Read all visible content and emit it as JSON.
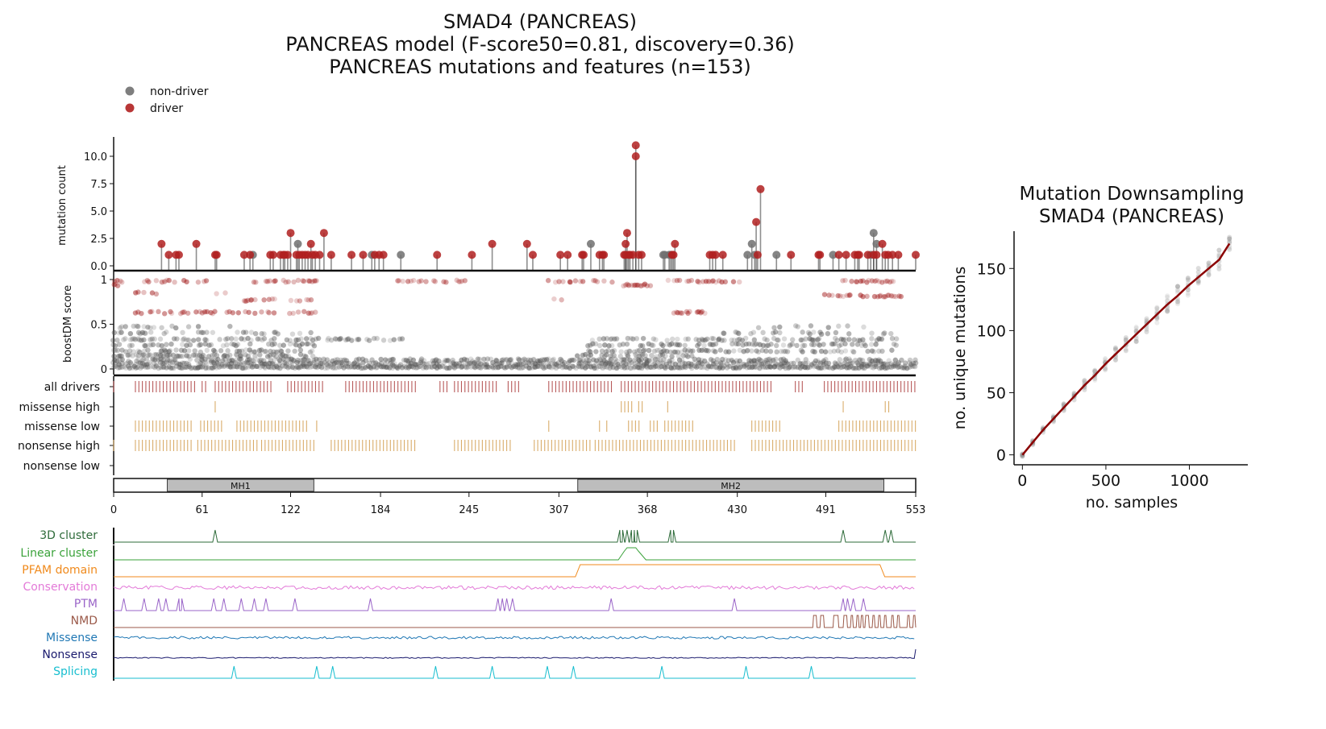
{
  "header": {
    "title": "SMAD4 (PANCREAS)",
    "model_line": "PANCREAS model (F-score50=0.81, discovery=0.36)",
    "mutations_line": "PANCREAS mutations and features (n=153)"
  },
  "legend": {
    "non_driver": "non-driver",
    "driver": "driver"
  },
  "colors": {
    "driver": "#b02020",
    "non_driver": "#707070",
    "all_drivers_track": "#b85a5a",
    "consequence_track": "#d9ac6a",
    "domain_fill": "#bdbdbd",
    "trend_line": "#8b0000"
  },
  "chart_data": [
    {
      "type": "scatter",
      "panel": "lollipop",
      "ylabel": "mutation count",
      "xlim": [
        0,
        553
      ],
      "ylim": [
        0,
        11.5
      ],
      "yticks": [
        "0.0",
        "2.5",
        "5.0",
        "7.5",
        "10.0"
      ],
      "drivers": [
        [
          33,
          2
        ],
        [
          38,
          1
        ],
        [
          43,
          1
        ],
        [
          45,
          1
        ],
        [
          57,
          2
        ],
        [
          70,
          1
        ],
        [
          71,
          1
        ],
        [
          90,
          1
        ],
        [
          94,
          1
        ],
        [
          108,
          1
        ],
        [
          110,
          1
        ],
        [
          115,
          1
        ],
        [
          117,
          1
        ],
        [
          118,
          1
        ],
        [
          120,
          1
        ],
        [
          122,
          3
        ],
        [
          126,
          1
        ],
        [
          128,
          1
        ],
        [
          130,
          1
        ],
        [
          132,
          1
        ],
        [
          134,
          1
        ],
        [
          136,
          2
        ],
        [
          137,
          1
        ],
        [
          139,
          1
        ],
        [
          142,
          1
        ],
        [
          145,
          3
        ],
        [
          150,
          1
        ],
        [
          164,
          1
        ],
        [
          172,
          1
        ],
        [
          180,
          1
        ],
        [
          183,
          1
        ],
        [
          186,
          1
        ],
        [
          223,
          1
        ],
        [
          247,
          1
        ],
        [
          261,
          2
        ],
        [
          285,
          2
        ],
        [
          289,
          1
        ],
        [
          308,
          1
        ],
        [
          313,
          1
        ],
        [
          323,
          1
        ],
        [
          324,
          1
        ],
        [
          335,
          1
        ],
        [
          337,
          1
        ],
        [
          338,
          1
        ],
        [
          352,
          1
        ],
        [
          353,
          1
        ],
        [
          353,
          2
        ],
        [
          354,
          3
        ],
        [
          355,
          1
        ],
        [
          356,
          1
        ],
        [
          358,
          1
        ],
        [
          360,
          11
        ],
        [
          360,
          10
        ],
        [
          362,
          1
        ],
        [
          364,
          1
        ],
        [
          385,
          1
        ],
        [
          386,
          1
        ],
        [
          387,
          2
        ],
        [
          411,
          1
        ],
        [
          413,
          1
        ],
        [
          415,
          1
        ],
        [
          420,
          1
        ],
        [
          443,
          4
        ],
        [
          444,
          1
        ],
        [
          446,
          7
        ],
        [
          467,
          1
        ],
        [
          486,
          1
        ],
        [
          487,
          1
        ],
        [
          500,
          1
        ],
        [
          505,
          1
        ],
        [
          511,
          1
        ],
        [
          513,
          1
        ],
        [
          514,
          1
        ],
        [
          520,
          1
        ],
        [
          524,
          1
        ],
        [
          526,
          1
        ],
        [
          530,
          2
        ],
        [
          532,
          1
        ],
        [
          534,
          1
        ],
        [
          537,
          1
        ],
        [
          541,
          1
        ],
        [
          553,
          1
        ]
      ],
      "non_drivers": [
        [
          96,
          1
        ],
        [
          127,
          2
        ],
        [
          178,
          1
        ],
        [
          198,
          1
        ],
        [
          329,
          2
        ],
        [
          379,
          1
        ],
        [
          380,
          1
        ],
        [
          383,
          1
        ],
        [
          384,
          1
        ],
        [
          437,
          1
        ],
        [
          440,
          2
        ],
        [
          442,
          1
        ],
        [
          457,
          1
        ],
        [
          496,
          1
        ],
        [
          522,
          1
        ],
        [
          524,
          3
        ],
        [
          526,
          2
        ]
      ]
    },
    {
      "type": "scatter",
      "panel": "boostdm",
      "ylabel": "boostDM score",
      "xlim": [
        0,
        553
      ],
      "ylim": [
        0,
        1
      ],
      "yticks": [
        "0",
        "0.5",
        "1"
      ],
      "driver_bands": [
        {
          "y": 0.98,
          "ranges": [
            [
              0,
              7
            ],
            [
              20,
              65
            ],
            [
              95,
              140
            ],
            [
              190,
              250
            ],
            [
              300,
              345
            ],
            [
              380,
              435
            ],
            [
              500,
              540
            ]
          ],
          "density": 0.5
        },
        {
          "y": 0.94,
          "ranges": [
            [
              0,
              3
            ],
            [
              350,
              370
            ]
          ],
          "density": 0.9
        },
        {
          "y": 0.85,
          "ranges": [
            [
              10,
              30
            ],
            [
              60,
              80
            ]
          ],
          "density": 0.2
        },
        {
          "y": 0.82,
          "ranges": [
            [
              490,
              545
            ]
          ],
          "density": 0.6
        },
        {
          "y": 0.77,
          "ranges": [
            [
              90,
              140
            ],
            [
              300,
              310
            ]
          ],
          "density": 0.5
        },
        {
          "y": 0.63,
          "ranges": [
            [
              15,
              140
            ],
            [
              385,
              410
            ]
          ],
          "density": 0.5
        }
      ],
      "nondriver_bands": [
        {
          "y": 0.02,
          "ranges": [
            [
              0,
              553
            ]
          ],
          "density": 1.0
        },
        {
          "y": 0.06,
          "ranges": [
            [
              0,
              553
            ]
          ],
          "density": 0.8
        },
        {
          "y": 0.1,
          "ranges": [
            [
              0,
              553
            ]
          ],
          "density": 0.6
        },
        {
          "y": 0.15,
          "ranges": [
            [
              0,
              140
            ],
            [
              320,
              400
            ]
          ],
          "density": 0.6
        },
        {
          "y": 0.2,
          "ranges": [
            [
              0,
              140
            ],
            [
              320,
              540
            ]
          ],
          "density": 0.5
        },
        {
          "y": 0.27,
          "ranges": [
            [
              0,
              140
            ],
            [
              320,
              540
            ]
          ],
          "density": 0.5
        },
        {
          "y": 0.33,
          "ranges": [
            [
              0,
              200
            ],
            [
              320,
              540
            ]
          ],
          "density": 0.45
        },
        {
          "y": 0.4,
          "ranges": [
            [
              0,
              140
            ],
            [
              420,
              540
            ]
          ],
          "density": 0.3
        },
        {
          "y": 0.47,
          "ranges": [
            [
              0,
              80
            ],
            [
              440,
              520
            ]
          ],
          "density": 0.2
        }
      ]
    },
    {
      "type": "table",
      "panel": "consequence-tracks",
      "xlim": [
        0,
        553
      ],
      "rows": [
        {
          "label": "all drivers",
          "ranges": [
            [
              0,
              1
            ],
            [
              15,
              58
            ],
            [
              61,
              65
            ],
            [
              70,
              110
            ],
            [
              120,
              145
            ],
            [
              160,
              210
            ],
            [
              225,
              230
            ],
            [
              235,
              265
            ],
            [
              272,
              280
            ],
            [
              300,
              345
            ],
            [
              350,
              455
            ],
            [
              470,
              475
            ],
            [
              490,
              553
            ]
          ],
          "step": 2.4
        },
        {
          "label": "missense high",
          "ranges": [
            [
              70,
              71
            ],
            [
              350,
              358
            ],
            [
              362,
              366
            ],
            [
              382,
              384
            ],
            [
              503,
              504
            ],
            [
              532,
              536
            ]
          ],
          "step": 2.4
        },
        {
          "label": "missense low",
          "ranges": [
            [
              15,
              55
            ],
            [
              60,
              75
            ],
            [
              85,
              135
            ],
            [
              140,
              142
            ],
            [
              300,
              302
            ],
            [
              335,
              336
            ],
            [
              340,
              342
            ],
            [
              355,
              364
            ],
            [
              370,
              376
            ],
            [
              380,
              400
            ],
            [
              440,
              460
            ],
            [
              500,
              553
            ]
          ],
          "step": 2.4
        },
        {
          "label": "nonsense high",
          "ranges": [
            [
              0,
              1
            ],
            [
              15,
              55
            ],
            [
              58,
              100
            ],
            [
              102,
              140
            ],
            [
              150,
              210
            ],
            [
              235,
              275
            ],
            [
              290,
              330
            ],
            [
              332,
              430
            ],
            [
              440,
              553
            ]
          ],
          "step": 2.4
        },
        {
          "label": "nonsense low",
          "ranges": [],
          "step": 2.4
        }
      ]
    },
    {
      "type": "bar",
      "panel": "domains",
      "xlim": [
        0,
        553
      ],
      "xticks": [
        "0",
        "61",
        "122",
        "184",
        "245",
        "307",
        "368",
        "430",
        "491",
        "553"
      ],
      "domains": [
        {
          "label": "MH1",
          "start": 37,
          "end": 138
        },
        {
          "label": "MH2",
          "start": 320,
          "end": 531
        }
      ]
    },
    {
      "type": "line",
      "panel": "features",
      "xlim": [
        0,
        553
      ],
      "tracks": [
        {
          "label": "3D cluster",
          "color": "#2e6b3a",
          "kind": "spikes",
          "spikes": [
            70,
            349,
            351,
            354,
            357,
            359,
            361,
            384,
            386,
            503,
            532,
            536
          ]
        },
        {
          "label": "Linear cluster",
          "color": "#3aa23a",
          "kind": "plateau",
          "segments": [
            [
              348,
              367,
              0.7
            ],
            [
              352,
              362,
              1.0
            ]
          ]
        },
        {
          "label": "PFAM domain",
          "color": "#f08a1c",
          "kind": "step",
          "segments": [
            [
              320,
              530,
              1.0
            ]
          ]
        },
        {
          "label": "Conservation",
          "color": "#e37ad8",
          "kind": "noise",
          "level": 0.5,
          "amp": 0.5
        },
        {
          "label": "PTM",
          "color": "#9a64c8",
          "kind": "spikes",
          "spikes": [
            7,
            21,
            31,
            36,
            45,
            47,
            69,
            76,
            88,
            97,
            105,
            125,
            177,
            265,
            268,
            271,
            275,
            343,
            428,
            503,
            506,
            510,
            517
          ]
        },
        {
          "label": "NMD",
          "color": "#9b5a4a",
          "kind": "blocks",
          "segments": [
            [
              482,
              485
            ],
            [
              487,
              490
            ],
            [
              496,
              500
            ],
            [
              503,
              506
            ],
            [
              508,
              510
            ],
            [
              512,
              514
            ],
            [
              515,
              517
            ],
            [
              518,
              521
            ],
            [
              523,
              525
            ],
            [
              527,
              529
            ],
            [
              531,
              533
            ],
            [
              536,
              538
            ],
            [
              540,
              542
            ],
            [
              547,
              549
            ],
            [
              551,
              553
            ]
          ]
        },
        {
          "label": "Missense",
          "color": "#1f77b4",
          "kind": "noise",
          "level": 0.6,
          "amp": 0.35
        },
        {
          "label": "Nonsense",
          "color": "#1a1a6e",
          "kind": "noise",
          "level": 0.15,
          "amp": 0.15,
          "spikes": [
            553
          ]
        },
        {
          "label": "Splicing",
          "color": "#17becf",
          "kind": "spikes",
          "spikes": [
            83,
            140,
            151,
            222,
            261,
            299,
            317,
            378,
            436,
            481
          ]
        }
      ]
    },
    {
      "type": "line",
      "panel": "downsampling",
      "title": "Mutation Downsampling",
      "subtitle": "SMAD4 (PANCREAS)",
      "xlabel": "no. samples",
      "ylabel": "no. unique mutations",
      "xlim": [
        -50,
        1350
      ],
      "ylim": [
        -8,
        180
      ],
      "xticks": [
        0,
        500,
        1000
      ],
      "yticks": [
        0,
        50,
        100,
        150
      ],
      "x": [
        0,
        62,
        124,
        186,
        248,
        310,
        372,
        434,
        496,
        558,
        620,
        682,
        744,
        806,
        868,
        930,
        992,
        1054,
        1116,
        1178,
        1240
      ],
      "y": [
        0,
        10,
        20,
        29,
        38,
        47,
        56,
        64,
        73,
        81,
        89,
        97,
        105,
        113,
        121,
        128,
        136,
        143,
        150,
        157,
        170
      ]
    }
  ]
}
